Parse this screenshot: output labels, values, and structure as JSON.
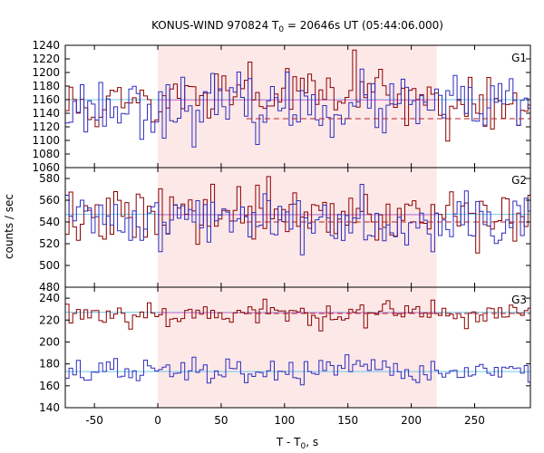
{
  "chart_data": {
    "type": "line",
    "title": {
      "prefix": "KONUS-WIND 970824 T",
      "sub": "0",
      "suffix": " = 20646s UT (05:44:06.000)"
    },
    "xlabel": {
      "prefix": "T - T",
      "sub": "0",
      "suffix": ", s"
    },
    "ylabel": "counts / sec",
    "xlim": [
      -73,
      294
    ],
    "xticks": [
      -50,
      0,
      50,
      100,
      150,
      200,
      250
    ],
    "shaded_interval": [
      0,
      220
    ],
    "colors": {
      "shade": "#fde8e8",
      "red_series": "#8b0000",
      "blue_series": "#2d2dbf",
      "red_background": "#b22222",
      "pink_mean": "#e87ad1",
      "cyan_mean": "#6ec6e8"
    },
    "panels": [
      {
        "label": "G1",
        "ylim": [
          1060,
          1240
        ],
        "yticks": [
          1060,
          1080,
          1100,
          1120,
          1140,
          1160,
          1180,
          1200,
          1220,
          1240
        ],
        "background_level": 1132,
        "mean_level": 1160,
        "bin_width": 2.944,
        "series": [
          {
            "color_key": "red_series",
            "seed": 11,
            "mean": 1150,
            "noise": 22,
            "burst": 20,
            "burst_range": [
              0,
              220
            ]
          },
          {
            "color_key": "blue_series",
            "seed": 23,
            "mean": 1150,
            "noise": 22,
            "burst": 0,
            "burst_range": [
              0,
              0
            ]
          }
        ]
      },
      {
        "label": "G2",
        "ylim": [
          480,
          590
        ],
        "yticks": [
          480,
          500,
          520,
          540,
          560,
          580
        ],
        "background_level": 540,
        "mean_level": 547,
        "bin_width": 2.944,
        "series": [
          {
            "color_key": "red_series",
            "seed": 37,
            "mean": 543,
            "noise": 13,
            "burst": 5,
            "burst_range": [
              0,
              220
            ]
          },
          {
            "color_key": "blue_series",
            "seed": 41,
            "mean": 543,
            "noise": 13,
            "burst": 0,
            "burst_range": [
              0,
              0
            ]
          }
        ]
      },
      {
        "label": "G3",
        "ylim": [
          140,
          250
        ],
        "yticks": [
          140,
          160,
          180,
          200,
          220,
          240
        ],
        "background_level": 226,
        "mean_level": 227,
        "secondary_mean_level": 173,
        "bin_width": 2.944,
        "series": [
          {
            "color_key": "red_series",
            "seed": 53,
            "mean": 226,
            "noise": 6,
            "burst": 0,
            "burst_range": [
              0,
              0
            ]
          },
          {
            "color_key": "blue_series",
            "seed": 67,
            "mean": 173,
            "noise": 6,
            "burst": 0,
            "burst_range": [
              0,
              0
            ]
          }
        ]
      }
    ]
  }
}
